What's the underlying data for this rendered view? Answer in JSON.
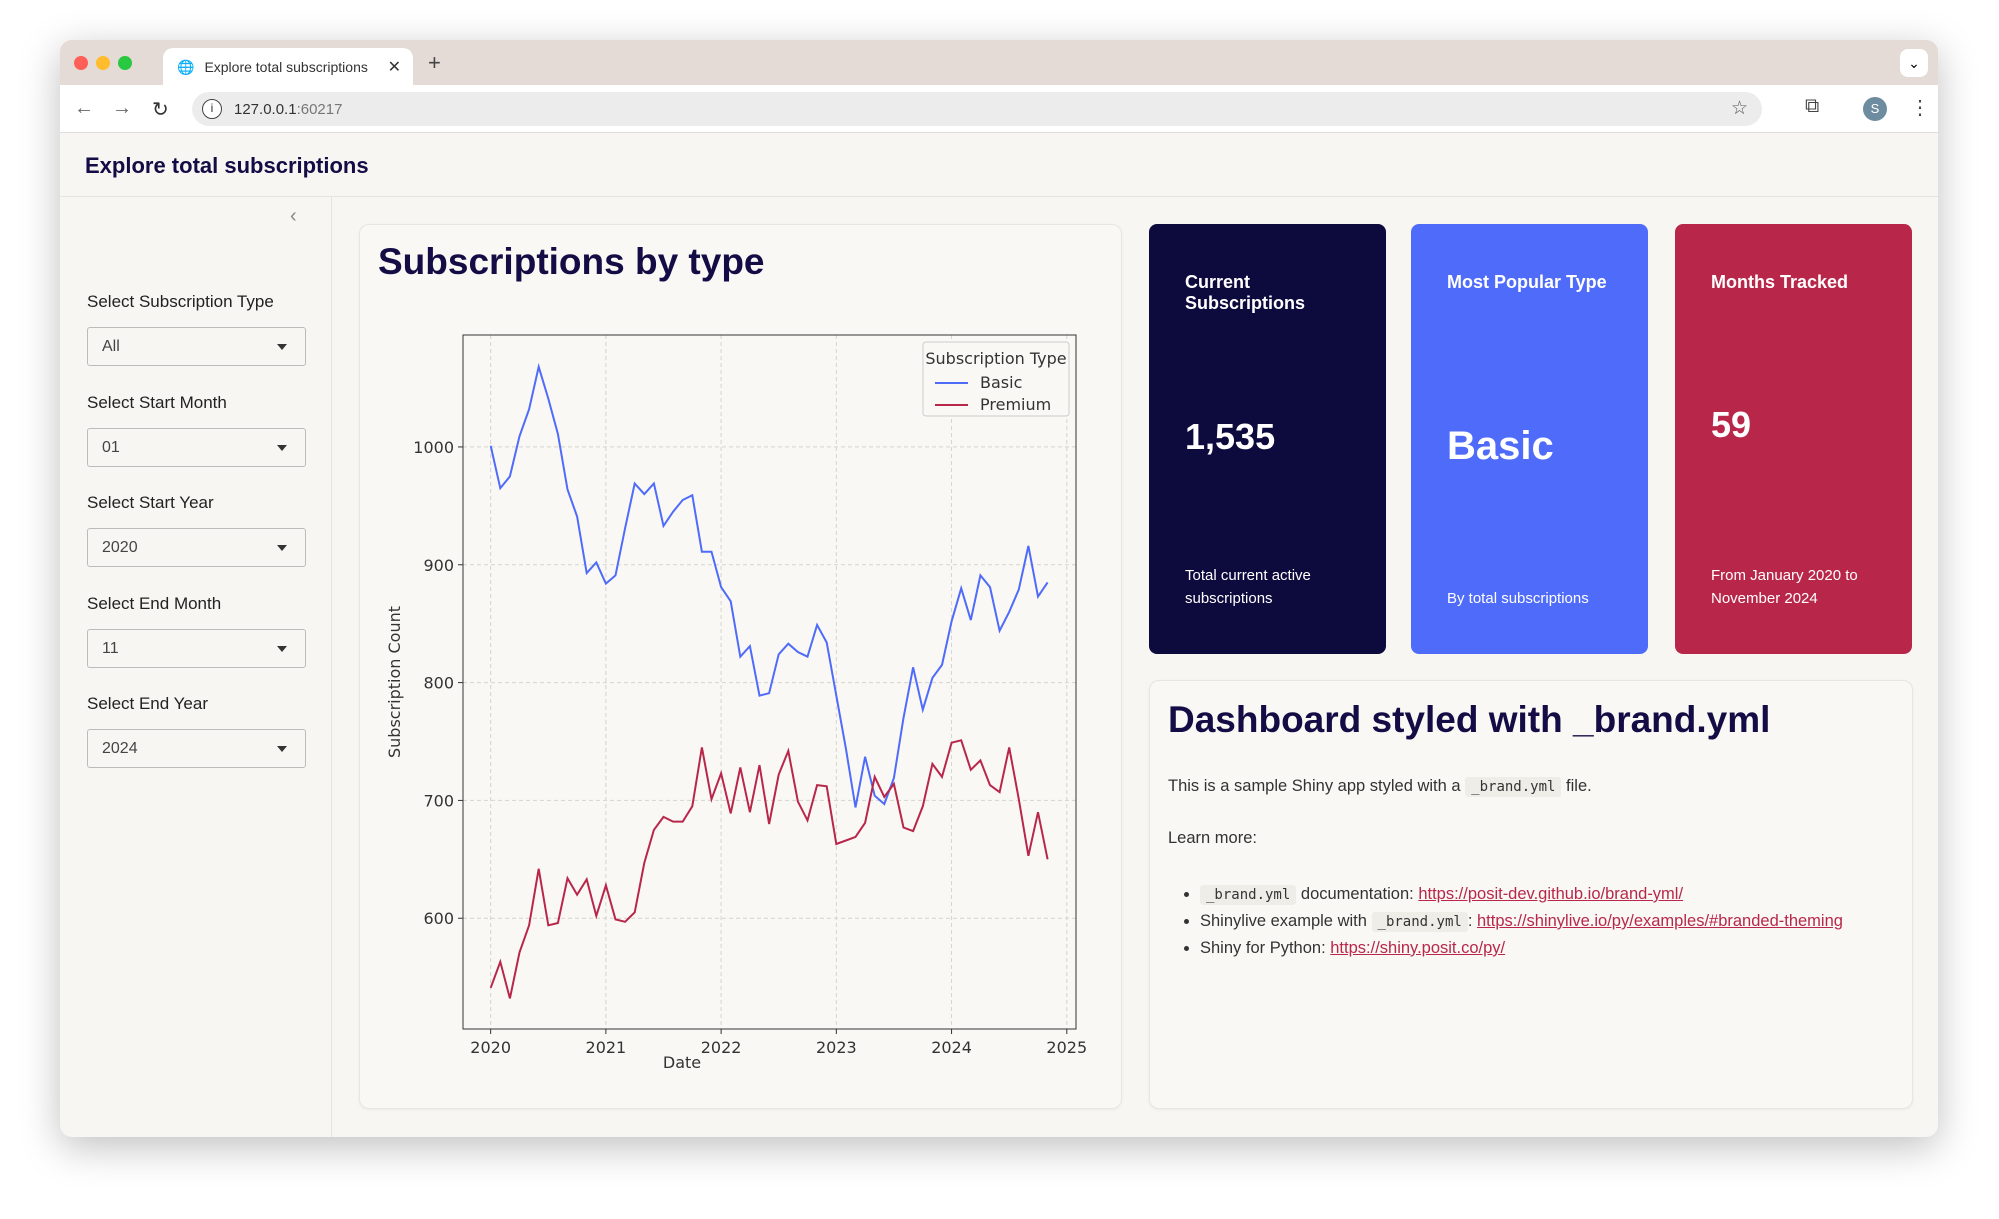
{
  "browser": {
    "tab_title": "Explore total subscriptions",
    "url_host": "127.0.0.1",
    "url_port": ":60217",
    "avatar_letter": "S"
  },
  "app": {
    "title": "Explore total subscriptions"
  },
  "sidebar": {
    "inputs": [
      {
        "label": "Select Subscription Type",
        "value": "All"
      },
      {
        "label": "Select Start Month",
        "value": "01"
      },
      {
        "label": "Select Start Year",
        "value": "2020"
      },
      {
        "label": "Select End Month",
        "value": "11"
      },
      {
        "label": "Select End Year",
        "value": "2024"
      }
    ]
  },
  "chart_card": {
    "title": "Subscriptions by type"
  },
  "chart_data": {
    "type": "line",
    "xlabel": "Date",
    "ylabel": "Subscription Count",
    "xlim": [
      2019.76,
      2025.08
    ],
    "ylim": [
      506,
      1095
    ],
    "xticks": [
      "2020",
      "2021",
      "2022",
      "2023",
      "2024",
      "2025"
    ],
    "yticks": [
      600,
      700,
      800,
      900,
      1000
    ],
    "grid": true,
    "legend_title": "Subscription Type",
    "legend_position": "top-right",
    "start_month": "2020-01",
    "series": [
      {
        "name": "Basic",
        "color": "#4f6bfa",
        "values": [
          1001,
          965,
          975,
          1009,
          1032,
          1068,
          1041,
          1011,
          964,
          941,
          893,
          902,
          884,
          891,
          931,
          969,
          960,
          969,
          933,
          945,
          955,
          959,
          911,
          911,
          881,
          869,
          822,
          831,
          789,
          791,
          824,
          833,
          826,
          822,
          849,
          834,
          789,
          744,
          694,
          737,
          704,
          697,
          719,
          770,
          813,
          777,
          804,
          815,
          852,
          880,
          853,
          891,
          881,
          844,
          860,
          879,
          916,
          873,
          885
        ]
      },
      {
        "name": "Premium",
        "color": "#b8274a",
        "values": [
          541,
          563,
          532,
          571,
          594,
          642,
          594,
          596,
          634,
          620,
          633,
          602,
          628,
          599,
          597,
          605,
          647,
          675,
          686,
          682,
          682,
          695,
          745,
          701,
          723,
          689,
          728,
          690,
          730,
          680,
          722,
          742,
          699,
          683,
          713,
          712,
          663,
          666,
          669,
          681,
          720,
          703,
          714,
          677,
          674,
          695,
          731,
          720,
          749,
          751,
          726,
          734,
          713,
          707,
          745,
          701,
          653,
          690,
          650
        ]
      }
    ]
  },
  "value_boxes": [
    {
      "title": "Current Subscriptions",
      "value": "1,535",
      "subtitle": "Total current active subscriptions",
      "color": "#0d0a3d"
    },
    {
      "title": "Most Popular Type",
      "value": "Basic",
      "subtitle": "By total subscriptions",
      "color": "#4f6bfa"
    },
    {
      "title": "Months Tracked",
      "value": "59",
      "subtitle": "From January 2020 to November 2024",
      "color": "#b8274a"
    }
  ],
  "doc": {
    "title": "Dashboard styled with _brand.yml",
    "intro_pre": "This is a sample Shiny app styled with a",
    "intro_code": "_brand.yml",
    "intro_post": "file.",
    "learn_more": "Learn more:",
    "items": [
      {
        "code": "_brand.yml",
        "text": "documentation:",
        "link": "https://posit-dev.github.io/brand-yml/"
      },
      {
        "pre": "Shinylive example with",
        "code": "_brand.yml",
        "text": ":",
        "link": "https://shinylive.io/py/examples/#branded-theming"
      },
      {
        "pre": "Shiny for Python:",
        "link": "https://shiny.posit.co/py/"
      }
    ]
  }
}
